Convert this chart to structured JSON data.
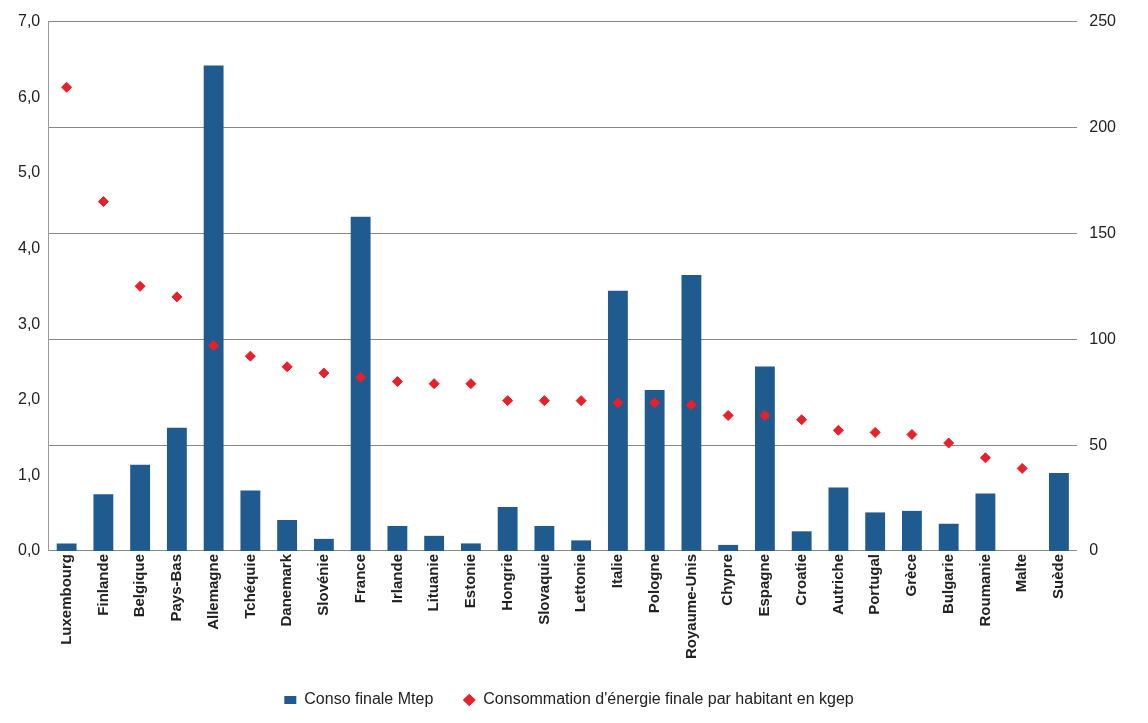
{
  "chart_data": {
    "type": "bar",
    "categories": [
      "Luxembourg",
      "Finlande",
      "Belgique",
      "Pays-Bas",
      "Allemagne",
      "Tchéquie",
      "Danemark",
      "Slovénie",
      "France",
      "Irlande",
      "Lituanie",
      "Estonie",
      "Hongrie",
      "Slovaquie",
      "Lettonie",
      "Italie",
      "Pologne",
      "Royaume-Unis",
      "Chypre",
      "Espagne",
      "Croatie",
      "Autriche",
      "Portugal",
      "Grèce",
      "Bulgarie",
      "Roumanie",
      "Malte",
      "Suède"
    ],
    "series": [
      {
        "name": "Conso finale Mtep",
        "color": "#1f5b8e",
        "values": [
          0.1,
          0.75,
          1.14,
          1.63,
          6.42,
          0.8,
          0.41,
          0.16,
          4.42,
          0.33,
          0.2,
          0.1,
          0.58,
          0.33,
          0.14,
          3.44,
          2.13,
          3.65,
          0.08,
          2.44,
          0.26,
          0.84,
          0.51,
          0.53,
          0.36,
          0.76,
          null,
          1.03
        ]
      },
      {
        "name": "Consommation d'énergie finale par habitant en kgep",
        "type": "scatter",
        "axis": "y2",
        "color": "#e8202a",
        "values": [
          219,
          165,
          125,
          120,
          97,
          92,
          87,
          84,
          82,
          80,
          79,
          79,
          71,
          71,
          71,
          70,
          70,
          69,
          64,
          64,
          62,
          57,
          56,
          55,
          51,
          44,
          39,
          null
        ]
      }
    ],
    "ylim": [
      0,
      7
    ],
    "yticks": [
      {
        "value": 0,
        "label": "0,0"
      },
      {
        "value": 1,
        "label": "1,0"
      },
      {
        "value": 2,
        "label": "2,0"
      },
      {
        "value": 3,
        "label": "3,0"
      },
      {
        "value": 4,
        "label": "4,0"
      },
      {
        "value": 5,
        "label": "5,0"
      },
      {
        "value": 6,
        "label": "6,0"
      },
      {
        "value": 7,
        "label": "7,0"
      }
    ],
    "y2lim": [
      0,
      250
    ],
    "y2ticks": [
      0,
      50,
      100,
      150,
      200,
      250
    ],
    "grid": true,
    "legend": "bottom",
    "marker": "diamond"
  }
}
